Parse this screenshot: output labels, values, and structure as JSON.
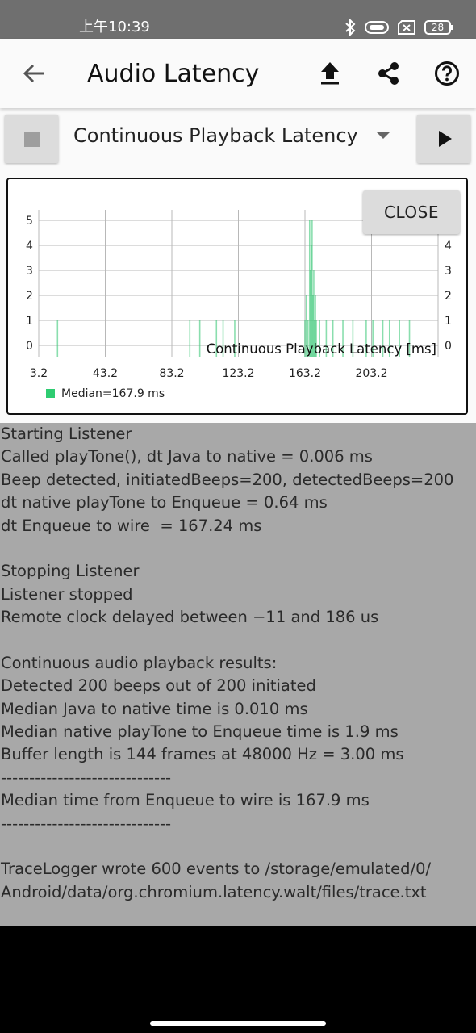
{
  "status_bar": {
    "time": "上午10:39",
    "battery": "28"
  },
  "app_bar": {
    "title": "Audio Latency",
    "icons": [
      "back-arrow-icon",
      "upload-icon",
      "share-icon",
      "help-icon"
    ]
  },
  "controls": {
    "spinner_value": "Continuous Playback Latency",
    "close_label": "CLOSE"
  },
  "chart_data": {
    "type": "bar",
    "title": "Continuous Playback Latency [ms]",
    "x_ticks": [
      "3.2",
      "43.2",
      "83.2",
      "123.2",
      "163.2",
      "203.2"
    ],
    "y_ticks": [
      "0",
      "1",
      "2",
      "3",
      "4",
      "5"
    ],
    "xlim": [
      3.2,
      243.2
    ],
    "ylim": [
      0,
      5.5
    ],
    "legend": "Median=167.9 ms",
    "legend_color": "#2ecc71",
    "bar_color": "#3cc878",
    "bins": [
      {
        "x": 14.5,
        "y": 1
      },
      {
        "x": 94,
        "y": 1
      },
      {
        "x": 100,
        "y": 1
      },
      {
        "x": 110,
        "y": 1
      },
      {
        "x": 114,
        "y": 1
      },
      {
        "x": 121,
        "y": 1
      },
      {
        "x": 163.2,
        "y": 1
      },
      {
        "x": 164,
        "y": 2
      },
      {
        "x": 165,
        "y": 1
      },
      {
        "x": 166,
        "y": 5
      },
      {
        "x": 166.5,
        "y": 3
      },
      {
        "x": 167,
        "y": 4
      },
      {
        "x": 167.5,
        "y": 5
      },
      {
        "x": 168,
        "y": 2
      },
      {
        "x": 168.5,
        "y": 3
      },
      {
        "x": 169,
        "y": 1
      },
      {
        "x": 169.5,
        "y": 2
      },
      {
        "x": 170,
        "y": 1
      },
      {
        "x": 172,
        "y": 1
      },
      {
        "x": 176,
        "y": 1
      },
      {
        "x": 180,
        "y": 1
      },
      {
        "x": 186,
        "y": 1
      },
      {
        "x": 192,
        "y": 1
      },
      {
        "x": 200,
        "y": 1
      },
      {
        "x": 204,
        "y": 1
      },
      {
        "x": 210,
        "y": 1
      },
      {
        "x": 214,
        "y": 1
      },
      {
        "x": 220,
        "y": 1
      },
      {
        "x": 226,
        "y": 1
      }
    ]
  },
  "log": [
    "Starting Listener",
    "Called playTone(), dt Java to native = 0.006 ms",
    "Beep detected, initiatedBeeps=200, detectedBeeps=200",
    "dt native playTone to Enqueue = 0.64 ms",
    "dt Enqueue to wire  = 167.24 ms",
    "",
    "Stopping Listener",
    "Listener stopped",
    "Remote clock delayed between −11 and 186 us",
    "",
    "Continuous audio playback results:",
    "Detected 200 beeps out of 200 initiated",
    "Median Java to native time is 0.010 ms",
    "Median native playTone to Enqueue time is 1.9 ms",
    "Buffer length is 144 frames at 48000 Hz = 3.00 ms",
    "------------------------------",
    "Median time from Enqueue to wire is 167.9 ms",
    "------------------------------",
    "",
    "TraceLogger wrote 600 events to /storage/emulated/0/",
    "Android/data/org.chromium.latency.walt/files/trace.txt"
  ]
}
